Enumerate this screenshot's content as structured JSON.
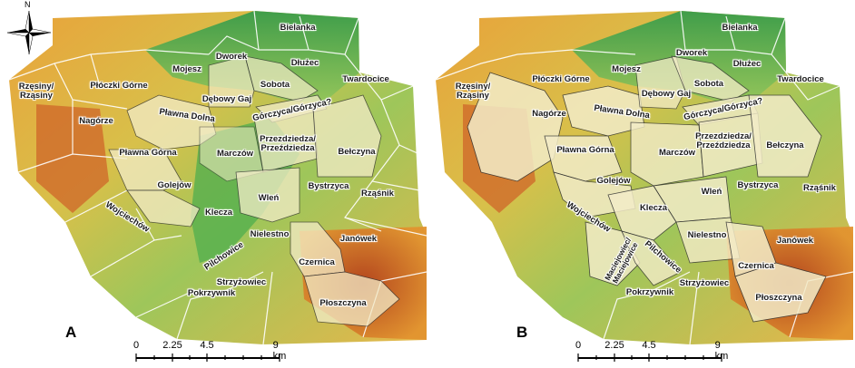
{
  "panels": [
    {
      "letter": "A"
    },
    {
      "letter": "B"
    }
  ],
  "north_label": "N",
  "scale": {
    "ticks": [
      "0",
      "2.25",
      "4.5",
      "9 km"
    ]
  },
  "labels_a": {
    "bielanka": "Bielanka",
    "dworek": "Dworek",
    "dluzec": "Dłużec",
    "mojesz": "Mojesz",
    "sobota": "Sobota",
    "twardocice": "Twardocice",
    "rzesiny": "Rzęsiny/\nRząsiny",
    "ploczki": "Płóczki Górne",
    "debowy": "Dębowy Gaj",
    "gorczyca": "Górczyca/Górzyca?",
    "nagorze": "Nagórze",
    "plawna_dolna": "Pławna Dolna",
    "przedzdziedza": "Przezdziedza/\nPrzeździedza",
    "belczyna": "Bełczyna",
    "plawna_gorna": "Pławna Górna",
    "marczow": "Marczów",
    "golejow": "Golejów",
    "bystrzyca": "Bystrzyca",
    "rzasnik": "Rząśnik",
    "wlen": "Wleń",
    "wojciechow": "Wojciechów",
    "klecza": "Klecza",
    "nielestno": "Nielestno",
    "janowek": "Janówek",
    "pilchowice": "Pilchowice",
    "czernica": "Czernica",
    "strzyzowiec": "Strzyżowiec",
    "pokrzywnik": "Pokrzywnik",
    "ploszczyna": "Płoszczyna"
  },
  "labels_b": {
    "bielanka": "Bielanka",
    "dworek": "Dworek",
    "dluzec": "Dłużec",
    "mojesz": "Mojesz",
    "sobota": "Sobota",
    "twardocice": "Twardocice",
    "rzesiny": "Rzęsiny/\nRząsiny",
    "ploczki": "Płóczki Górne",
    "debowy": "Dębowy Gaj",
    "gorczyca": "Górczyca/Górzyca?",
    "nagorze": "Nagórze",
    "plawna_dolna": "Pławna Dolna",
    "przedzdziedza": "Przezdziedza/\nPrzeździedza",
    "belczyna": "Bełczyna",
    "plawna_gorna": "Pławna Górna",
    "marczow": "Marczów",
    "golejow": "Golejów",
    "bystrzyca": "Bystrzyca",
    "rzasnik": "Rząśnik",
    "wlen": "Wleń",
    "wojciechow": "Wojciechów",
    "klecza": "Klecza",
    "nielestno": "Nielestno",
    "janowek": "Janówek",
    "maciejowiec": "Maciejowiec/\nMaciejowice",
    "pilchowice": "Pilchowice",
    "czernica": "Czernica",
    "strzyzowiec": "Strzyżowiec",
    "pokrzywnik": "Pokrzywnik",
    "ploszczyna": "Płoszczyna"
  },
  "colors": {
    "low": "#2f9a4a",
    "mid": "#e7d34a",
    "high": "#b3401b",
    "highlight": "#f3ecc8",
    "border": "#ffffff",
    "territory_border": "#333333"
  }
}
